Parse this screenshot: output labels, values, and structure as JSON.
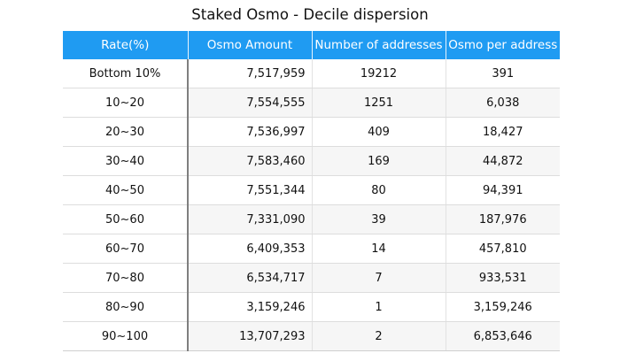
{
  "title": "Staked Osmo - Decile dispersion",
  "columns": [
    "Rate(%)",
    "Osmo Amount",
    "Number of addresses",
    "Osmo per address"
  ],
  "rows": [
    {
      "rate": "Bottom 10%",
      "amount": "7,517,959",
      "addresses": "19212",
      "per_address": "391"
    },
    {
      "rate": "10~20",
      "amount": "7,554,555",
      "addresses": "1251",
      "per_address": "6,038"
    },
    {
      "rate": "20~30",
      "amount": "7,536,997",
      "addresses": "409",
      "per_address": "18,427"
    },
    {
      "rate": "30~40",
      "amount": "7,583,460",
      "addresses": "169",
      "per_address": "44,872"
    },
    {
      "rate": "40~50",
      "amount": "7,551,344",
      "addresses": "80",
      "per_address": "94,391"
    },
    {
      "rate": "50~60",
      "amount": "7,331,090",
      "addresses": "39",
      "per_address": "187,976"
    },
    {
      "rate": "60~70",
      "amount": "6,409,353",
      "addresses": "14",
      "per_address": "457,810"
    },
    {
      "rate": "70~80",
      "amount": "6,534,717",
      "addresses": "7",
      "per_address": "933,531"
    },
    {
      "rate": "80~90",
      "amount": "3,159,246",
      "addresses": "1",
      "per_address": "3,159,246"
    },
    {
      "rate": "90~100",
      "amount": "13,707,293",
      "addresses": "2",
      "per_address": "6,853,646"
    }
  ]
}
